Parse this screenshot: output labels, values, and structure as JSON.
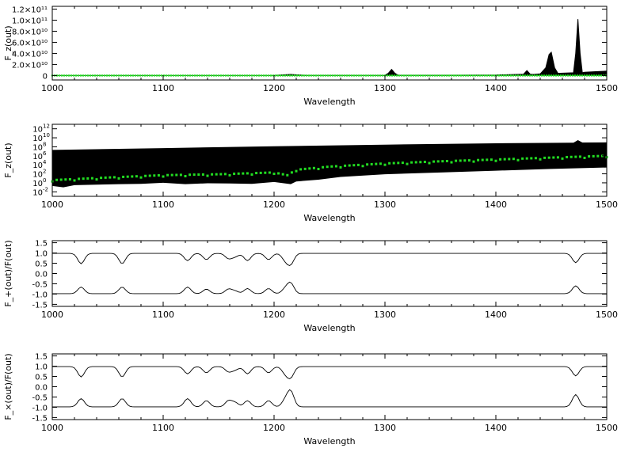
{
  "chart_data": [
    {
      "type": "area",
      "xlabel": "Wavelength",
      "ylabel": "F_z(out)",
      "xlim": [
        1000,
        1500
      ],
      "ylim": [
        -8000000000.0,
        125000000000.0
      ],
      "x_ticks": [
        "1000",
        "1100",
        "1200",
        "1300",
        "1400",
        "1500"
      ],
      "y_ticks": [
        {
          "value": 0,
          "label": "0"
        },
        {
          "value": 20000000000.0,
          "label": "2.0×10¹⁰"
        },
        {
          "value": 40000000000.0,
          "label": "4.0×10¹⁰"
        },
        {
          "value": 60000000000.0,
          "label": "6.0×10¹⁰"
        },
        {
          "value": 80000000000.0,
          "label": "8.0×10¹⁰"
        },
        {
          "value": 100000000000.0,
          "label": "1.0×10¹¹"
        },
        {
          "value": 120000000000.0,
          "label": "1.2×10¹¹"
        }
      ],
      "series": [
        {
          "role": "envelope",
          "color": "#000000",
          "x": [
            1000,
            1150,
            1200,
            1210,
            1215,
            1222,
            1230,
            1260,
            1300,
            1303,
            1306,
            1309,
            1312,
            1350,
            1400,
            1425,
            1428,
            1431,
            1434,
            1440,
            1445,
            1448,
            1450,
            1453,
            1456,
            1470,
            1472,
            1474,
            1476,
            1478,
            1480,
            1490,
            1500
          ],
          "y": [
            0,
            0,
            200000000.0,
            1500000000.0,
            2000000000.0,
            1200000000.0,
            200000000.0,
            200000000.0,
            500000000.0,
            4000000000.0,
            11000000000.0,
            4000000000.0,
            500000000.0,
            500000000.0,
            1000000000.0,
            2500000000.0,
            9000000000.0,
            2500000000.0,
            2000000000.0,
            3000000000.0,
            14000000000.0,
            38000000000.0,
            42000000000.0,
            14000000000.0,
            4000000000.0,
            5000000000.0,
            40000000000.0,
            102000000000.0,
            40000000000.0,
            5000000000.0,
            6000000000.0,
            7000000000.0,
            8000000000.0
          ]
        },
        {
          "role": "points",
          "color": "#22dd22",
          "style": "markers",
          "value": 0
        }
      ]
    },
    {
      "type": "area",
      "xlabel": "Wavelength",
      "ylabel": "F_z(out)",
      "yscale": "log",
      "xlim": [
        1000,
        1500
      ],
      "ylim": [
        0.001,
        10000000000000.0
      ],
      "x_ticks": [
        "1000",
        "1100",
        "1200",
        "1300",
        "1400",
        "1500"
      ],
      "y_ticks": [
        {
          "value": 0.01,
          "base": "10",
          "exp": "-2"
        },
        {
          "value": 1,
          "base": "10",
          "exp": "0"
        },
        {
          "value": 100,
          "base": "10",
          "exp": "2"
        },
        {
          "value": 10000,
          "base": "10",
          "exp": "4"
        },
        {
          "value": 1000000,
          "base": "10",
          "exp": "6"
        },
        {
          "value": 100000000,
          "base": "10",
          "exp": "8"
        },
        {
          "value": 10000000000,
          "base": "10",
          "exp": "10"
        },
        {
          "value": 1000000000000,
          "base": "10",
          "exp": "12"
        }
      ],
      "series": [
        {
          "role": "envelope-upper",
          "color": "#000000",
          "x": [
            1000,
            1100,
            1200,
            1300,
            1400,
            1470,
            1474,
            1478,
            1500
          ],
          "y": [
            20000000.0,
            50000000.0,
            130000000.0,
            300000000.0,
            600000000.0,
            800000000.0,
            3000000000.0,
            900000000.0,
            1000000000.0
          ]
        },
        {
          "role": "envelope-lower",
          "color": "#000000",
          "x": [
            1000,
            1010,
            1020,
            1040,
            1060,
            1080,
            1100,
            1120,
            1140,
            1160,
            1180,
            1200,
            1215,
            1220,
            1240,
            1260,
            1300,
            1350,
            1400,
            1450,
            1500
          ],
          "y": [
            0.2,
            0.1,
            0.3,
            0.4,
            0.5,
            0.6,
            1.0,
            0.5,
            0.8,
            0.7,
            0.6,
            1.5,
            0.5,
            2,
            5,
            20,
            80,
            200,
            500,
            1200,
            2500
          ]
        },
        {
          "role": "points",
          "color": "#22dd22",
          "x": [
            1000,
            1050,
            1100,
            1150,
            1200,
            1212,
            1220,
            1250,
            1300,
            1350,
            1400,
            1450,
            1500
          ],
          "y": [
            4,
            15,
            50,
            80,
            200,
            50,
            800,
            4000,
            20000,
            60000,
            150000,
            400000,
            1000000
          ]
        }
      ]
    },
    {
      "type": "line",
      "xlabel": "Wavelength",
      "ylabel": "F_+(out)/F(out)",
      "xlim": [
        1000,
        1500
      ],
      "ylim": [
        -1.6,
        1.6
      ],
      "x_ticks": [
        "1000",
        "1100",
        "1200",
        "1300",
        "1400",
        "1500"
      ],
      "y_ticks": [
        "-1.5",
        "-1.0",
        "-0.5",
        "0.0",
        "0.5",
        "1.0",
        "1.5"
      ],
      "lines": [
        1026,
        1063,
        1122,
        1139,
        1159,
        1165,
        1176,
        1195,
        1210,
        1215,
        1472
      ],
      "series": [
        {
          "name": "",
          "baseline": 0.98,
          "depths": [
            0.5,
            0.5,
            0.35,
            0.3,
            0.25,
            0.15,
            0.35,
            0.3,
            0.3,
            0.5,
            0.45
          ]
        },
        {
          "name": "",
          "baseline": -0.98,
          "depths": [
            -0.32,
            -0.32,
            -0.32,
            -0.22,
            -0.22,
            -0.12,
            -0.25,
            -0.25,
            -0.22,
            -0.5,
            -0.38
          ]
        }
      ]
    },
    {
      "type": "line",
      "xlabel": "Wavelength",
      "ylabel": "F_×(out)/F(out)",
      "xlim": [
        1000,
        1500
      ],
      "ylim": [
        -1.6,
        1.6
      ],
      "x_ticks": [
        "1000",
        "1100",
        "1200",
        "1300",
        "1400",
        "1500"
      ],
      "y_ticks": [
        "-1.5",
        "-1.0",
        "-0.5",
        "0.0",
        "0.5",
        "1.0",
        "1.5"
      ],
      "lines": [
        1026,
        1063,
        1122,
        1139,
        1159,
        1165,
        1176,
        1195,
        1210,
        1215,
        1472
      ],
      "series": [
        {
          "name": "",
          "baseline": 0.98,
          "depths": [
            0.5,
            0.5,
            0.35,
            0.3,
            0.25,
            0.15,
            0.35,
            0.3,
            0.3,
            0.5,
            0.45
          ]
        },
        {
          "name": "",
          "baseline": -0.98,
          "depths": [
            -0.4,
            -0.4,
            -0.4,
            -0.3,
            -0.3,
            -0.2,
            -0.3,
            -0.3,
            -0.3,
            -0.75,
            -0.6
          ]
        }
      ]
    }
  ]
}
